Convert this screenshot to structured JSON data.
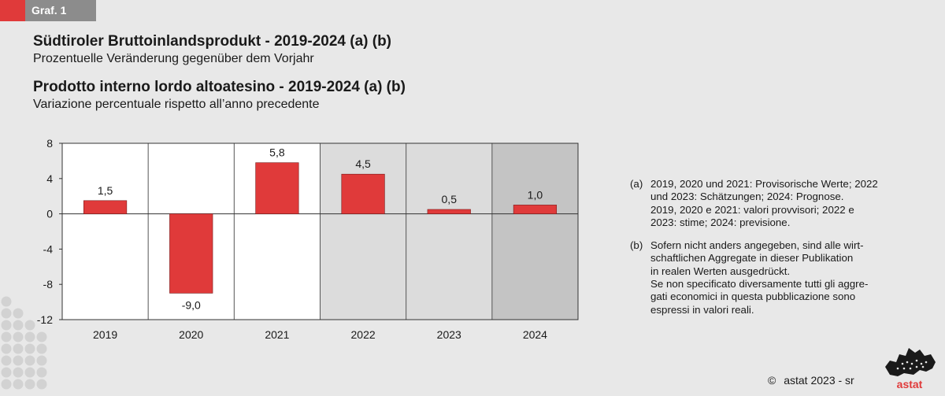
{
  "header": {
    "tag": "Graf. 1",
    "title_de": "Südtiroler Bruttoinlandsprodukt - 2019-2024 (a) (b)",
    "subtitle_de": "Prozentuelle Veränderung gegenüber dem Vorjahr",
    "title_it": "Prodotto interno lordo altoatesino - 2019-2024 (a) (b)",
    "subtitle_it": "Variazione percentuale rispetto all’anno precedente"
  },
  "chart_data": {
    "type": "bar",
    "categories": [
      "2019",
      "2020",
      "2021",
      "2022",
      "2023",
      "2024"
    ],
    "values": [
      1.5,
      -9.0,
      5.8,
      4.5,
      0.5,
      1.0
    ],
    "value_labels": [
      "1,5",
      "-9,0",
      "5,8",
      "4,5",
      "0,5",
      "1,0"
    ],
    "ylim": [
      -12,
      8
    ],
    "yticks": [
      8,
      4,
      0,
      -4,
      -8,
      -12
    ],
    "ytick_labels": [
      "8",
      "4",
      "0",
      "-4",
      "-8",
      "-12"
    ],
    "bar_color": "#e03a3a",
    "background_by_category": [
      "#ffffff",
      "#ffffff",
      "#ffffff",
      "#dcdcdc",
      "#dcdcdc",
      "#c4c4c4"
    ]
  },
  "footnotes": [
    {
      "key": "(a)",
      "lines": [
        "2019, 2020 und 2021: Provisorische Werte; 2022",
        "und 2023: Schätzungen; 2024: Prognose.",
        "2019, 2020 e 2021: valori provvisori; 2022 e",
        "2023: stime; 2024: previsione."
      ]
    },
    {
      "key": "(b)",
      "lines": [
        "Sofern nicht anders angegeben, sind alle wirt-",
        "schaftlichen Aggregate in dieser Publikation",
        "in realen Werten ausgedrückt.",
        "Se non specificato diversamente tutti gli aggre-",
        "gati economici in questa pubblicazione sono",
        "espressi in valori reali."
      ]
    }
  ],
  "footer": {
    "copyright_symbol": "©",
    "copyright_text": "astat 2023 - sr",
    "logo_text": "astat"
  },
  "colors": {
    "accent": "#e03a3a",
    "tag_grey": "#8c8c8c",
    "page_bg": "#e8e8e8"
  }
}
